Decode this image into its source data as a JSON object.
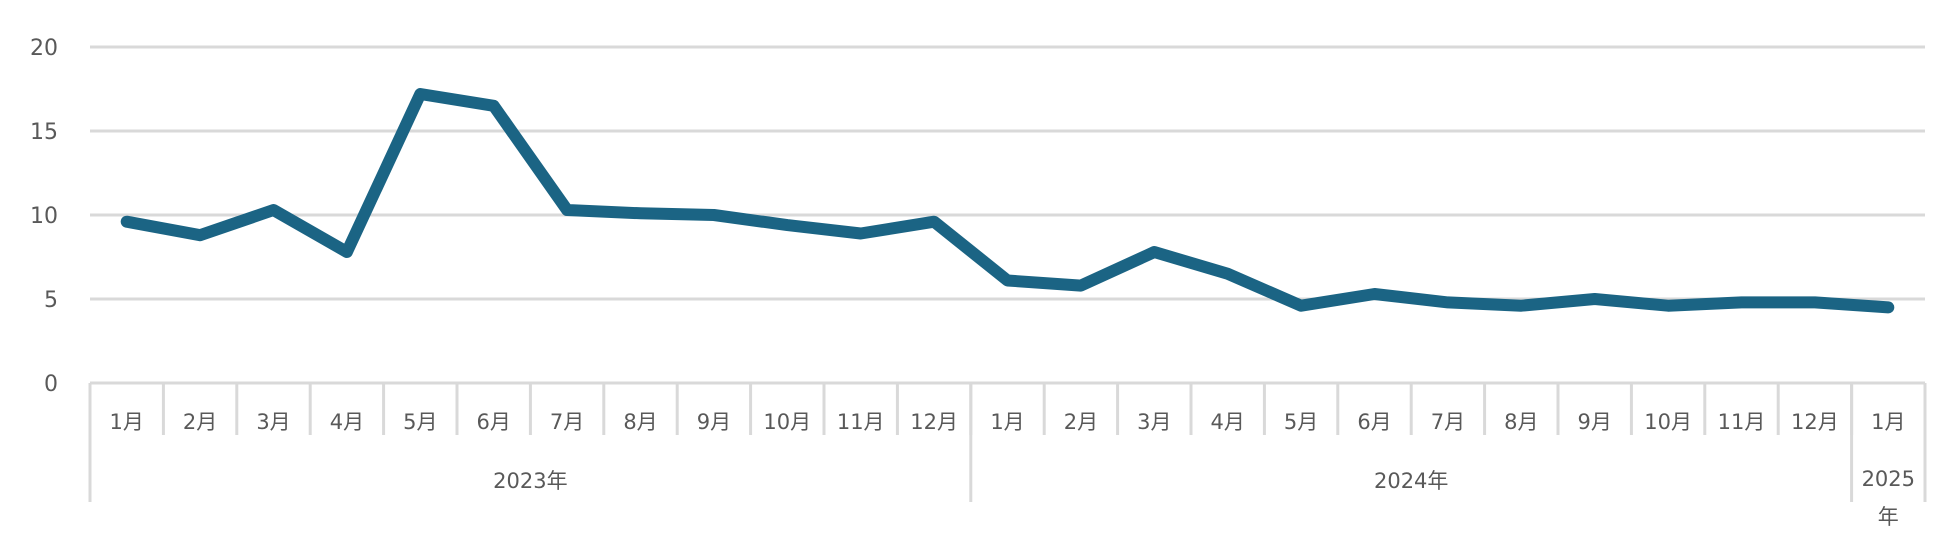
{
  "chart_data": {
    "type": "line",
    "title": "",
    "xlabel": "",
    "ylabel": "",
    "ylim": [
      0,
      20
    ],
    "y_ticks": [
      "0",
      "5",
      "10",
      "15",
      "20"
    ],
    "grid": true,
    "legend": "none",
    "categories": [
      "1月",
      "2月",
      "3月",
      "4月",
      "5月",
      "6月",
      "7月",
      "8月",
      "9月",
      "10月",
      "11月",
      "12月",
      "1月",
      "2月",
      "3月",
      "4月",
      "5月",
      "6月",
      "7月",
      "8月",
      "9月",
      "10月",
      "11月",
      "12月",
      "1月"
    ],
    "groups": [
      {
        "label": "2023年",
        "count": 12
      },
      {
        "label": "2024年",
        "count": 12
      },
      {
        "label_lines": [
          "2025",
          "年"
        ],
        "count": 1
      }
    ],
    "series": [
      {
        "color": "#1b6484",
        "values": [
          9.6,
          8.8,
          10.3,
          7.8,
          17.2,
          16.5,
          10.3,
          10.1,
          10.0,
          9.4,
          8.9,
          9.6,
          6.1,
          5.8,
          7.8,
          6.5,
          4.6,
          5.3,
          4.8,
          4.6,
          5.0,
          4.6,
          4.8,
          4.8,
          4.5
        ]
      }
    ]
  }
}
